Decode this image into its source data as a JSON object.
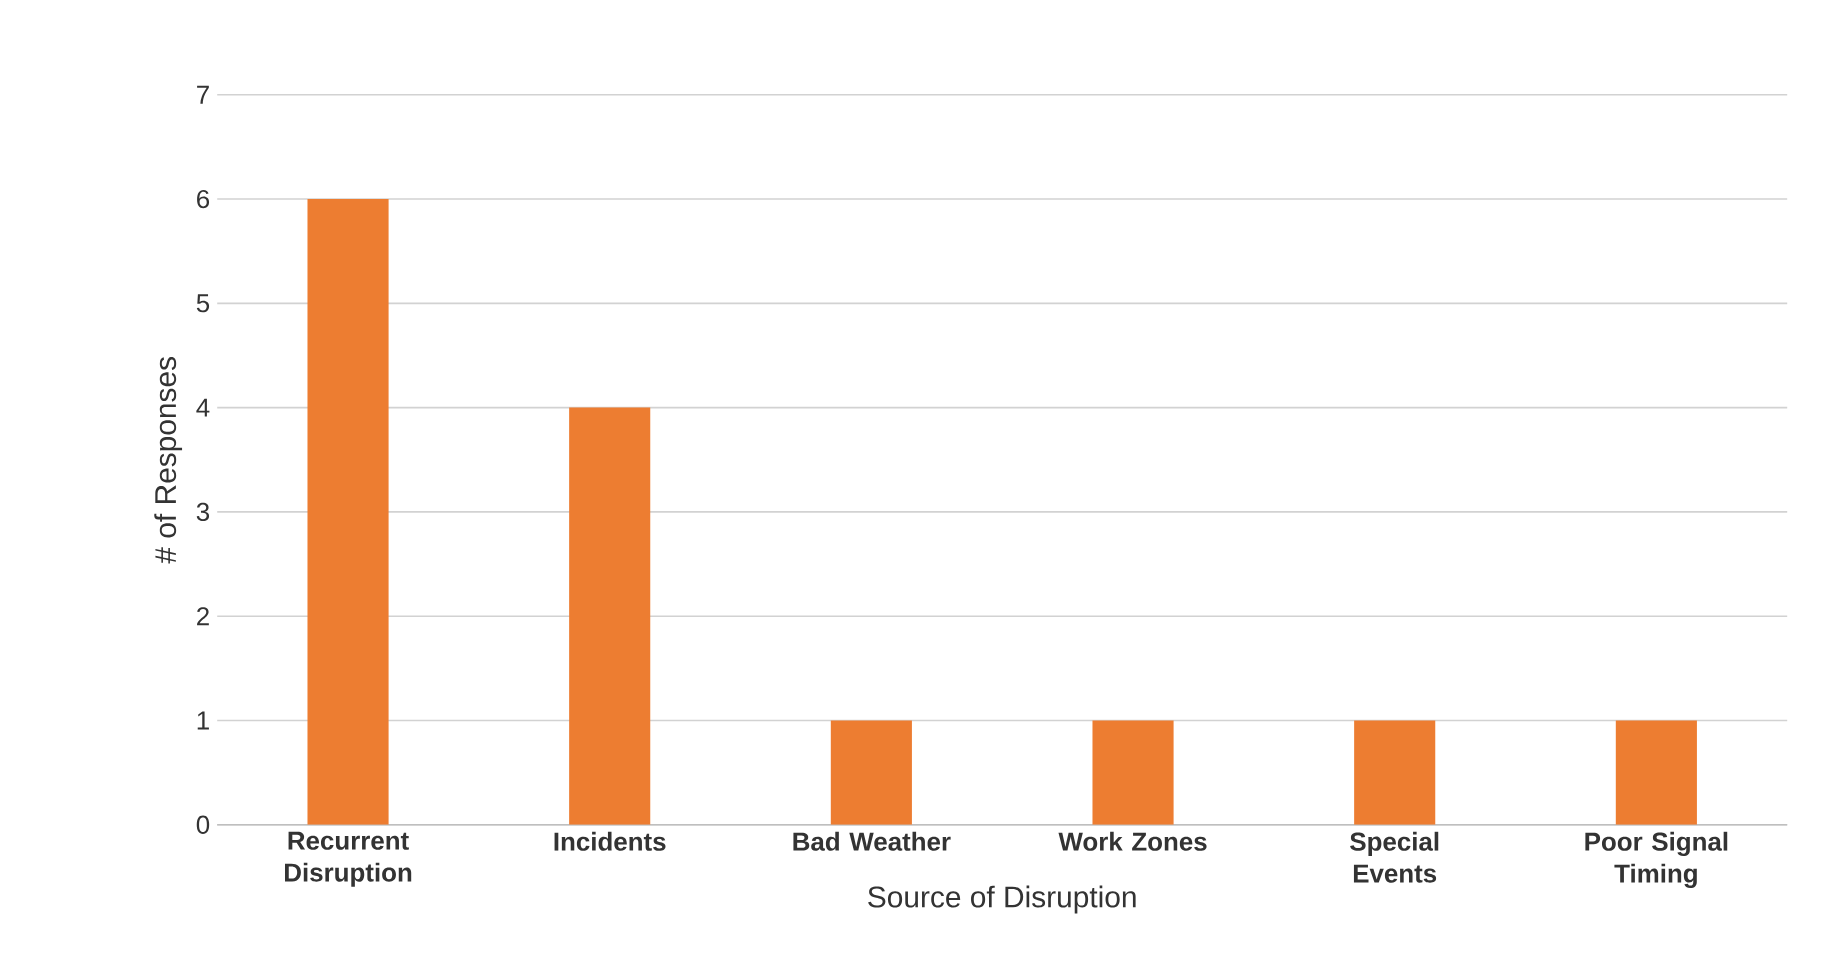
{
  "chart_data": {
    "type": "bar",
    "xlabel": "Source of Disruption",
    "ylabel": "# of Responses",
    "categories": [
      "Recurrent Disruption",
      "Incidents",
      "Bad Weather",
      "Work Zones",
      "Special Events",
      "Poor Signal Timing"
    ],
    "values": [
      6,
      4,
      1,
      1,
      1,
      1
    ],
    "color": "#ed7d31",
    "ylim": [
      0,
      7
    ],
    "yticks": [
      0,
      1,
      2,
      3,
      4,
      5,
      6,
      7
    ],
    "grid": "y"
  }
}
